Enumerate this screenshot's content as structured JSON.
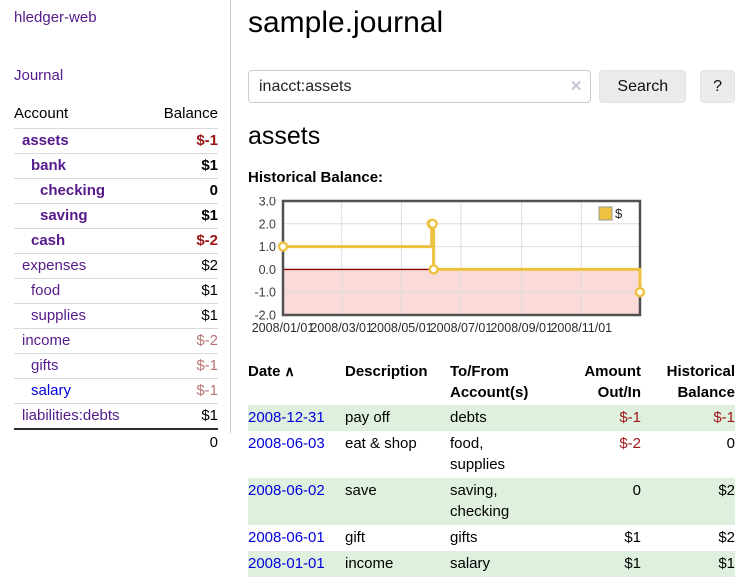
{
  "app": {
    "brand": "hledger-web",
    "nav_journal": "Journal"
  },
  "icons": {
    "sort_asc": "∧",
    "clear": "✕"
  },
  "colors": {
    "link_purple": "#551a8b",
    "link_blue": "#0000dd",
    "negative_strong": "#9d1414",
    "negative_muted": "#b87575",
    "row_stripe_green": "#dff0df",
    "chart_line": "#edc240",
    "chart_negative_region": "#fbdada",
    "chart_zero_line": "#8b0000",
    "chart_grid": "#dddddd",
    "chart_border": "#515151"
  },
  "sidebar": {
    "headers": [
      "Account",
      "Balance"
    ],
    "rows": [
      {
        "account": "assets",
        "balance": "$-1",
        "depth": 1,
        "bold": true
      },
      {
        "account": "bank",
        "balance": "$1",
        "depth": 2,
        "bold": true
      },
      {
        "account": "checking",
        "balance": "0",
        "depth": 3,
        "bold": true
      },
      {
        "account": "saving",
        "balance": "$1",
        "depth": 3,
        "bold": true
      },
      {
        "account": "cash",
        "balance": "$-2",
        "depth": 2,
        "bold": true
      },
      {
        "account": "expenses",
        "balance": "$2",
        "depth": 1
      },
      {
        "account": "food",
        "balance": "$1",
        "depth": 2
      },
      {
        "account": "supplies",
        "balance": "$1",
        "depth": 2
      },
      {
        "account": "income",
        "balance": "$-2",
        "depth": 1
      },
      {
        "account": "gifts",
        "balance": "$-1",
        "depth": 2
      },
      {
        "account": "salary",
        "balance": "$-1",
        "depth": 2,
        "unvisited": true
      },
      {
        "account": "liabilities:debts",
        "balance": "$1",
        "depth": 1
      }
    ],
    "total": "0"
  },
  "main": {
    "title": "sample.journal",
    "search": {
      "value": "inacct:assets",
      "button_label": "Search",
      "help_label": "?"
    },
    "account_heading": "assets",
    "chart_label": "Historical Balance:",
    "register": {
      "headers": [
        "Date",
        "Description",
        "To/From Account(s)",
        "Amount Out/In",
        "Historical Balance"
      ],
      "rows": [
        {
          "date": "2008-12-31",
          "description": "pay off",
          "accounts": "debts",
          "amount": "$-1",
          "balance": "$-1"
        },
        {
          "date": "2008-06-03",
          "description": "eat & shop",
          "accounts": "food, supplies",
          "amount": "$-2",
          "balance": "0"
        },
        {
          "date": "2008-06-02",
          "description": "save",
          "accounts": "saving, checking",
          "amount": "0",
          "balance": "$2"
        },
        {
          "date": "2008-06-01",
          "description": "gift",
          "accounts": "gifts",
          "amount": "$1",
          "balance": "$2"
        },
        {
          "date": "2008-01-01",
          "description": "income",
          "accounts": "salary",
          "amount": "$1",
          "balance": "$1"
        }
      ]
    }
  },
  "chart_data": {
    "type": "line",
    "step": true,
    "title": "Historical Balance:",
    "series": [
      {
        "name": "$",
        "color": "#edc240",
        "points": [
          [
            "2008-01-01",
            1
          ],
          [
            "2008-06-01",
            2
          ],
          [
            "2008-06-02",
            2
          ],
          [
            "2008-06-03",
            0
          ],
          [
            "2008-12-31",
            -1
          ]
        ]
      }
    ],
    "x_range": [
      "2008-01-01",
      "2008-12-31"
    ],
    "x_ticks": [
      "2008/01/01",
      "2008/03/01",
      "2008/05/01",
      "2008/07/01",
      "2008/09/01",
      "2008/11/01"
    ],
    "y_ticks": [
      "3.0",
      "2.0",
      "1.0",
      "0.0",
      "-1.0",
      "-2.0"
    ],
    "ylim": [
      -2,
      3
    ],
    "grid": true,
    "legend_position": "top-right",
    "negative_region_shaded": true
  }
}
